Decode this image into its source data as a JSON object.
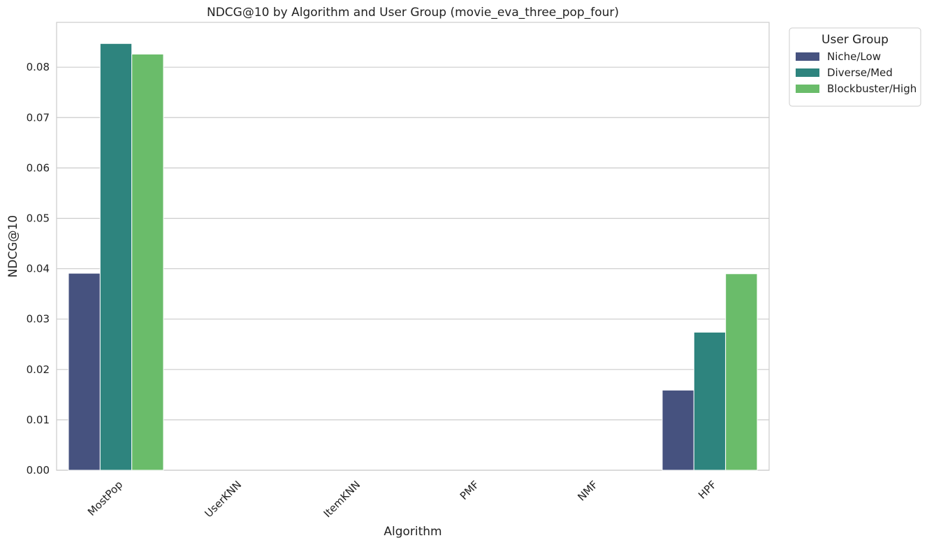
{
  "chart_data": {
    "type": "bar",
    "title": "NDCG@10 by Algorithm and User Group (movie_eva_three_pop_four)",
    "xlabel": "Algorithm",
    "ylabel": "NDCG@10",
    "categories": [
      "MostPop",
      "UserKNN",
      "ItemKNN",
      "PMF",
      "NMF",
      "HPF"
    ],
    "series": [
      {
        "name": "Niche/Low",
        "color": "#46527f",
        "values": [
          0.0391,
          0,
          0,
          0,
          0,
          0.0159
        ]
      },
      {
        "name": "Diverse/Med",
        "color": "#2e847e",
        "values": [
          0.0847,
          0,
          0,
          0,
          0,
          0.0274
        ]
      },
      {
        "name": "Blockbuster/High",
        "color": "#6abc6a",
        "values": [
          0.0826,
          0,
          0,
          0,
          0,
          0.039
        ]
      }
    ],
    "ylim": [
      0,
      0.0889
    ],
    "yticks": [
      "0.00",
      "0.01",
      "0.02",
      "0.03",
      "0.04",
      "0.05",
      "0.06",
      "0.07",
      "0.08"
    ],
    "grid": true,
    "legend": {
      "title": "User Group",
      "placement": "outside top-right"
    }
  }
}
